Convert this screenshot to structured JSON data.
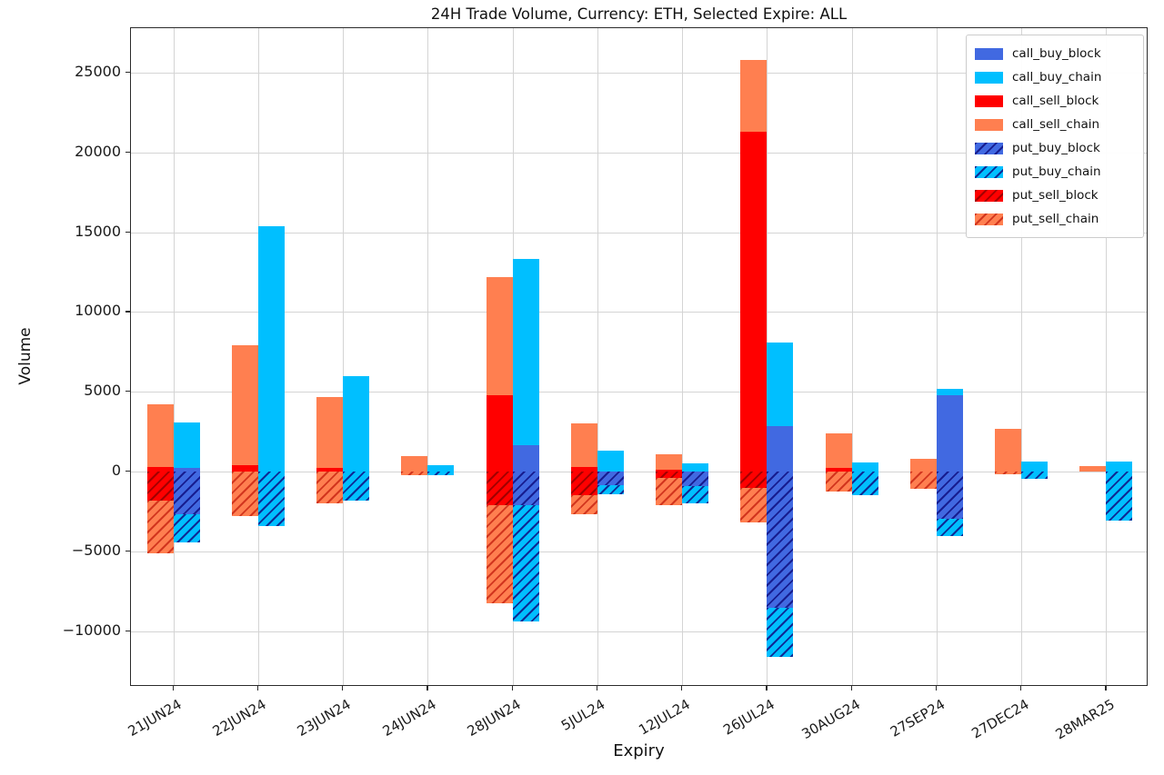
{
  "figure": {
    "title": "24H Trade Volume, Currency: ETH, Selected Expire: ALL",
    "xlabel": "Expiry",
    "ylabel": "Volume"
  },
  "chart_data": {
    "type": "bar",
    "stacked": true,
    "title": "24H Trade Volume, Currency: ETH, Selected Expire: ALL",
    "xlabel": "Expiry",
    "ylabel": "Volume",
    "grid": true,
    "legend_position": "upper right",
    "ylim": [
      -13500,
      27800
    ],
    "yticks": [
      -10000,
      -5000,
      0,
      5000,
      10000,
      15000,
      20000,
      25000
    ],
    "categories": [
      "21JUN24",
      "22JUN24",
      "23JUN24",
      "24JUN24",
      "28JUN24",
      "5JUL24",
      "12JUL24",
      "26JUL24",
      "30AUG24",
      "27SEP24",
      "27DEC24",
      "28MAR25"
    ],
    "legend": [
      "call_buy_block",
      "call_buy_chain",
      "call_sell_block",
      "call_sell_chain",
      "put_buy_block",
      "put_buy_chain",
      "put_sell_block",
      "put_sell_chain"
    ],
    "colors": {
      "call_buy_block": "#4169e1",
      "call_buy_chain": "#00bfff",
      "call_sell_block": "#ff0000",
      "call_sell_chain": "#ff7f50",
      "put_buy_block": "#4169e1",
      "put_buy_chain": "#00bfff",
      "put_sell_block": "#ff0000",
      "put_sell_chain": "#ff7f50"
    },
    "hatched_series": [
      "put_buy_block",
      "put_buy_chain",
      "put_sell_block",
      "put_sell_chain"
    ],
    "note": "put_* series plotted below zero; magnitudes stored positive. Left bar of each pair = sell stack, right bar = buy stack; _block segments stack nearest zero.",
    "series": [
      {
        "name": "call_buy_block",
        "values": [
          250,
          0,
          0,
          0,
          1650,
          0,
          0,
          2850,
          0,
          4800,
          0,
          0
        ]
      },
      {
        "name": "call_buy_chain",
        "values": [
          2850,
          15400,
          6000,
          400,
          11700,
          1300,
          500,
          5250,
          550,
          400,
          650,
          600
        ]
      },
      {
        "name": "call_sell_block",
        "values": [
          300,
          400,
          250,
          0,
          4800,
          300,
          100,
          21300,
          250,
          0,
          0,
          0
        ]
      },
      {
        "name": "call_sell_chain",
        "values": [
          3900,
          7500,
          4400,
          950,
          7400,
          2700,
          1000,
          4500,
          2150,
          800,
          2650,
          350
        ]
      },
      {
        "name": "put_buy_block",
        "values": [
          2700,
          0,
          0,
          0,
          2100,
          850,
          900,
          8550,
          0,
          2950,
          0,
          0
        ]
      },
      {
        "name": "put_buy_chain",
        "values": [
          1750,
          3400,
          1800,
          250,
          7300,
          600,
          1100,
          3050,
          1500,
          1100,
          450,
          3050
        ]
      },
      {
        "name": "put_sell_block",
        "values": [
          1800,
          0,
          0,
          0,
          2100,
          1500,
          400,
          1050,
          0,
          0,
          0,
          0
        ]
      },
      {
        "name": "put_sell_chain",
        "values": [
          3300,
          2800,
          2000,
          200,
          6150,
          1150,
          1700,
          2150,
          1250,
          1100,
          150,
          0
        ]
      }
    ],
    "bar_layout": {
      "sell_bar_above": [
        "call_sell_block",
        "call_sell_chain"
      ],
      "sell_bar_below": [
        "put_sell_block",
        "put_sell_chain"
      ],
      "buy_bar_above": [
        "call_buy_block",
        "call_buy_chain"
      ],
      "buy_bar_below": [
        "put_buy_block",
        "put_buy_chain"
      ]
    }
  }
}
